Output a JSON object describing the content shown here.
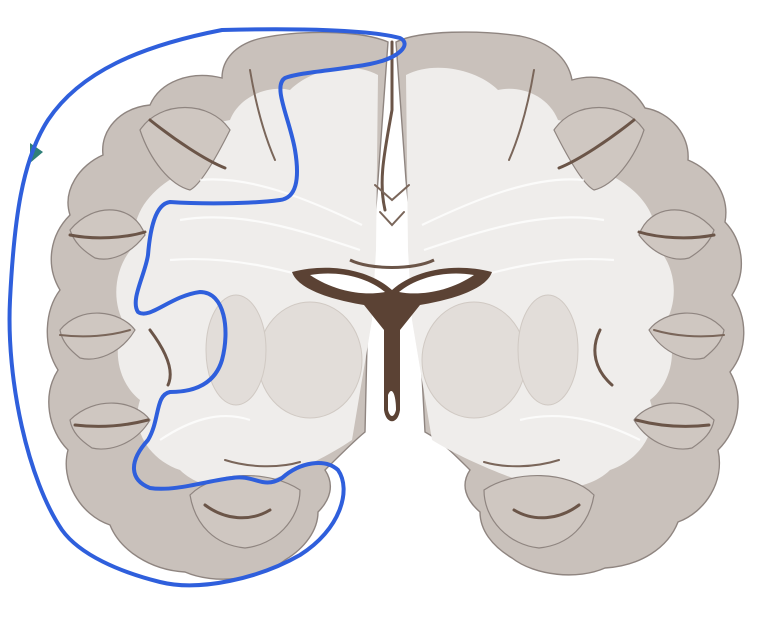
{
  "image": {
    "subject": "",
    "colors": {
      "grey_matter": "#c9c1bb",
      "white_matter": "#efedeb",
      "ventricle": "#5b4234",
      "annotation_stroke": "#2f5fdc",
      "background": "#ffffff",
      "left_edge_marker": "#2f7f78"
    }
  }
}
